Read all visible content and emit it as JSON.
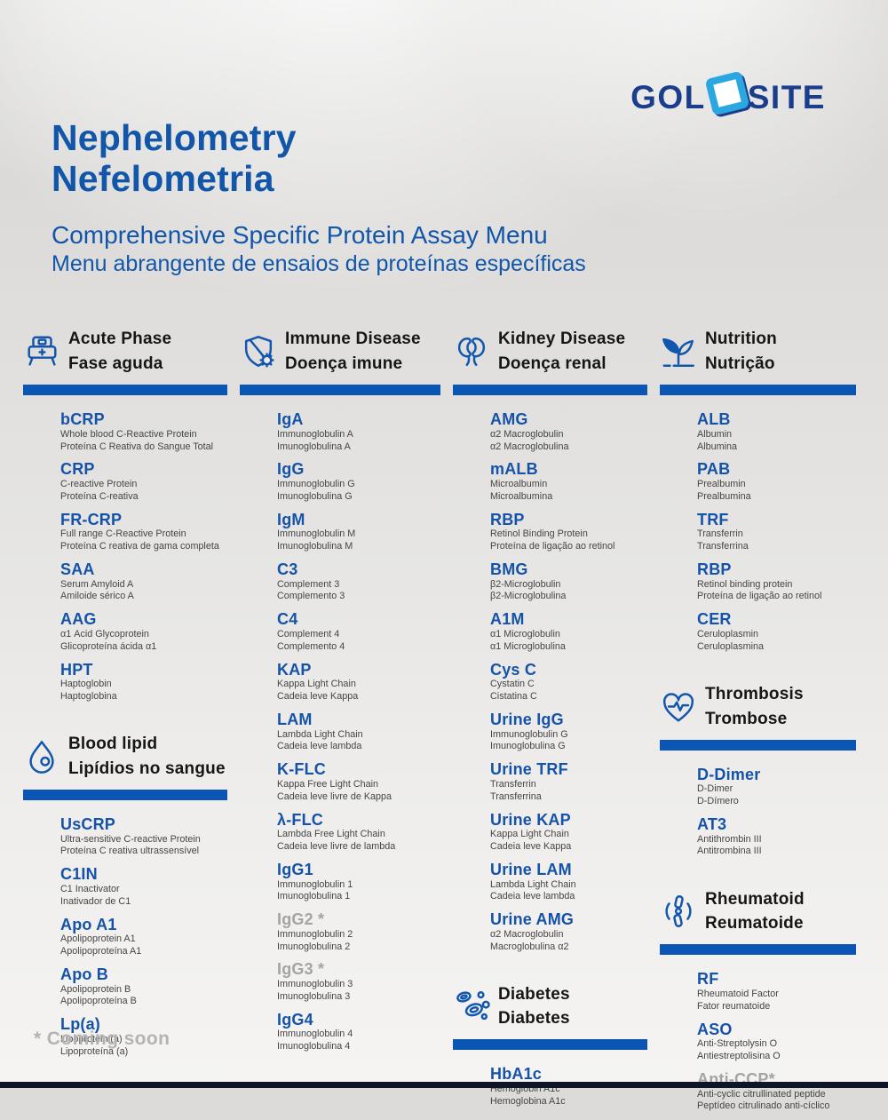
{
  "brand": {
    "left": "GOL",
    "right": "SITE"
  },
  "header": {
    "title_en": "Nephelometry",
    "title_pt": "Nefelometria",
    "subtitle_en": "Comprehensive Specific Protein Assay Menu",
    "subtitle_pt": "Menu abrangente de ensaios de proteínas específicas"
  },
  "footnote": "* Coming soon",
  "colors": {
    "accent_bar": "#0b55b4",
    "abbr_blue": "#1553a8",
    "title_blue": "#1256aa",
    "logo_navy": "#1b3e8c",
    "logo_light_blue": "#2aa7e0",
    "coming_soon_gray": "#a4a4a4"
  },
  "columns": [
    {
      "sections": [
        {
          "icon": "hospital-bed-icon",
          "title_en": "Acute Phase",
          "title_pt": "Fase aguda",
          "items": [
            {
              "abbr": "bCRP",
              "en": "Whole blood C-Reactive Protein",
              "pt": "Proteína C Reativa do Sangue Total"
            },
            {
              "abbr": "CRP",
              "en": "C-reactive Protein",
              "pt": "Proteína C-reativa"
            },
            {
              "abbr": "FR-CRP",
              "en": "Full range C-Reactive Protein",
              "pt": "Proteína C reativa de gama completa"
            },
            {
              "abbr": "SAA",
              "en": "Serum Amyloid A",
              "pt": "Amiloide sérico A"
            },
            {
              "abbr": "AAG",
              "en": "α1 Acid Glycoprotein",
              "pt": "Glicoproteína ácida α1"
            },
            {
              "abbr": "HPT",
              "en": "Haptoglobin",
              "pt": "Haptoglobina"
            }
          ]
        },
        {
          "icon": "blood-droplet-icon",
          "title_en": "Blood lipid",
          "title_pt": "Lipídios no sangue",
          "items": [
            {
              "abbr": "UsCRP",
              "en": "Ultra-sensitive C-reactive Protein",
              "pt": "Proteína C reativa ultrassensível"
            },
            {
              "abbr": "C1IN",
              "en": "C1 Inactivator",
              "pt": "Inativador de C1"
            },
            {
              "abbr": "Apo A1",
              "en": "Apolipoprotein A1",
              "pt": "Apolipoproteína A1"
            },
            {
              "abbr": "Apo B",
              "en": "Apolipoprotein B",
              "pt": "Apolipoproteína B"
            },
            {
              "abbr": "Lp(a)",
              "en": "Lipoprotein (a)",
              "pt": "Lipoproteína (a)"
            }
          ]
        }
      ]
    },
    {
      "sections": [
        {
          "icon": "shield-virus-icon",
          "title_en": "Immune Disease",
          "title_pt": "Doença imune",
          "items": [
            {
              "abbr": "IgA",
              "en": "Immunoglobulin A",
              "pt": "Imunoglobulina A"
            },
            {
              "abbr": "IgG",
              "en": "Immunoglobulin G",
              "pt": "Imunoglobulina G"
            },
            {
              "abbr": "IgM",
              "en": "Immunoglobulin M",
              "pt": "Imunoglobulina M"
            },
            {
              "abbr": "C3",
              "en": "Complement 3",
              "pt": "Complemento 3"
            },
            {
              "abbr": "C4",
              "en": "Complement 4",
              "pt": "Complemento 4"
            },
            {
              "abbr": "KAP",
              "en": "Kappa Light Chain",
              "pt": "Cadeia leve Kappa"
            },
            {
              "abbr": "LAM",
              "en": "Lambda Light Chain",
              "pt": "Cadeia leve lambda"
            },
            {
              "abbr": "K-FLC",
              "en": "Kappa Free Light Chain",
              "pt": "Cadeia leve livre de Kappa"
            },
            {
              "abbr": "λ-FLC",
              "en": "Lambda Free Light Chain",
              "pt": "Cadeia leve livre de lambda"
            },
            {
              "abbr": "IgG1",
              "en": "Immunoglobulin 1",
              "pt": "Imunoglobulina 1"
            },
            {
              "abbr": "IgG2 *",
              "en": "Immunoglobulin 2",
              "pt": "Imunoglobulina 2",
              "gray": true
            },
            {
              "abbr": "IgG3 *",
              "en": "Immunoglobulin 3",
              "pt": "Imunoglobulina 3",
              "gray": true
            },
            {
              "abbr": "IgG4",
              "en": "Immunoglobulin 4",
              "pt": "Imunoglobulina 4"
            }
          ]
        }
      ]
    },
    {
      "sections": [
        {
          "icon": "kidneys-icon",
          "title_en": "Kidney Disease",
          "title_pt": "Doença renal",
          "items": [
            {
              "abbr": "AMG",
              "en": "α2 Macroglobulin",
              "pt": "α2 Macroglobulina"
            },
            {
              "abbr": "mALB",
              "en": "Microalbumin",
              "pt": "Microalbumina"
            },
            {
              "abbr": "RBP",
              "en": "Retinol Binding Protein",
              "pt": "Proteína de ligação ao retinol"
            },
            {
              "abbr": "BMG",
              "en": "β2-Microglobulin",
              "pt": "β2-Microglobulina"
            },
            {
              "abbr": "A1M",
              "en": "α1 Microglobulin",
              "pt": "α1 Microglobulina"
            },
            {
              "abbr": "Cys C",
              "en": "Cystatin C",
              "pt": "Cistatina C"
            },
            {
              "abbr": "Urine IgG",
              "en": "Immunoglobulin G",
              "pt": "Imunoglobulina G"
            },
            {
              "abbr": "Urine TRF",
              "en": "Transferrin",
              "pt": "Transferrina"
            },
            {
              "abbr": "Urine KAP",
              "en": "Kappa Light Chain",
              "pt": "Cadeia leve Kappa"
            },
            {
              "abbr": "Urine LAM",
              "en": "Lambda Light Chain",
              "pt": "Cadeia leve lambda"
            },
            {
              "abbr": "Urine AMG",
              "en": "α2 Macroglobulin",
              "pt": "Macroglobulina α2"
            }
          ]
        },
        {
          "icon": "blood-cells-icon",
          "title_en": "Diabetes",
          "title_pt": "Diabetes",
          "items": [
            {
              "abbr": "HbA1c",
              "en": "Hemoglobin A1c",
              "pt": "Hemoglobina A1c"
            }
          ]
        }
      ]
    },
    {
      "sections": [
        {
          "icon": "plant-sprout-icon",
          "title_en": "Nutrition",
          "title_pt": "Nutrição",
          "items": [
            {
              "abbr": "ALB",
              "en": "Albumin",
              "pt": "Albumina"
            },
            {
              "abbr": "PAB",
              "en": "Prealbumin",
              "pt": "Prealbumina"
            },
            {
              "abbr": "TRF",
              "en": "Transferrin",
              "pt": "Transferrina"
            },
            {
              "abbr": "RBP",
              "en": "Retinol binding protein",
              "pt": "Proteína de ligação ao retinol"
            },
            {
              "abbr": "CER",
              "en": "Ceruloplasmin",
              "pt": "Ceruloplasmina"
            }
          ]
        },
        {
          "icon": "heart-pulse-icon",
          "title_en": "Thrombosis",
          "title_pt": "Trombose",
          "items": [
            {
              "abbr": "D-Dimer",
              "en": "D-Dimer",
              "pt": "D-Dímero"
            },
            {
              "abbr": "AT3",
              "en": "Antithrombin III",
              "pt": "Antitrombina III"
            }
          ]
        },
        {
          "icon": "joint-bone-icon",
          "title_en": "Rheumatoid",
          "title_pt": "Reumatoide",
          "items": [
            {
              "abbr": "RF",
              "en": "Rheumatoid Factor",
              "pt": "Fator reumatoide"
            },
            {
              "abbr": "ASO",
              "en": "Anti-Streptolysin O",
              "pt": "Antiestreptolisina O"
            },
            {
              "abbr": "Anti-CCP*",
              "en": "Anti-cyclic citrullinated peptide",
              "pt": "Peptídeo citrulinado anti-cíclico",
              "gray": true
            }
          ]
        }
      ]
    }
  ]
}
